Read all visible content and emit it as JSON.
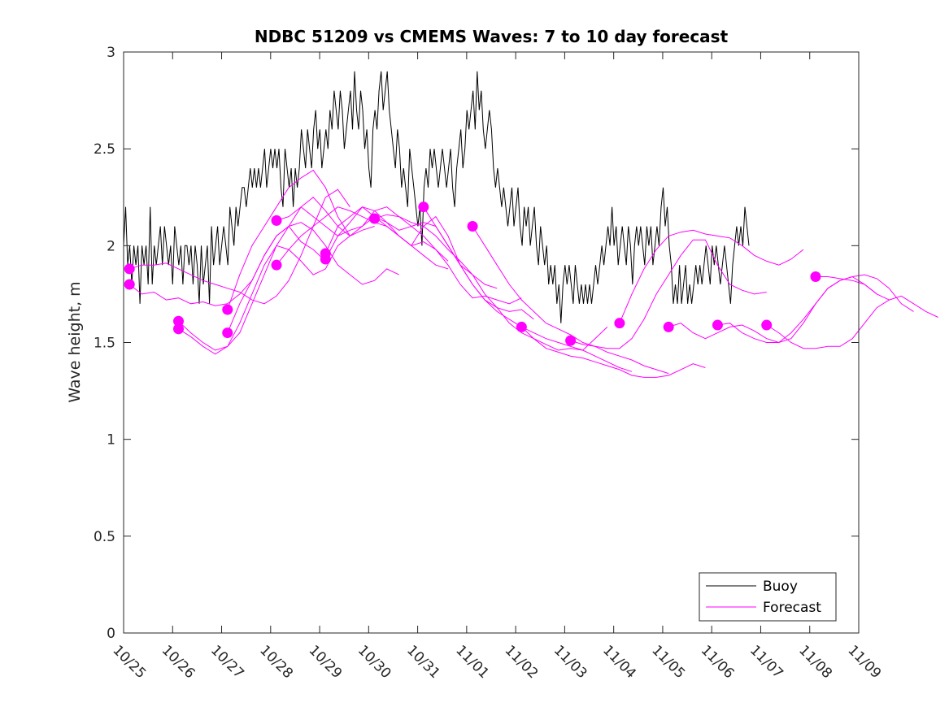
{
  "chart_data": {
    "type": "line",
    "title": "NDBC 51209 vs CMEMS Waves: 7 to 10 day forecast",
    "xlabel": "",
    "ylabel": "Wave height, m",
    "xlim_days": [
      0,
      15
    ],
    "x_tick_labels": [
      "10/25",
      "10/26",
      "10/27",
      "10/28",
      "10/29",
      "10/30",
      "10/31",
      "11/01",
      "11/02",
      "11/03",
      "11/04",
      "11/05",
      "11/06",
      "11/07",
      "11/08",
      "11/09"
    ],
    "ylim": [
      0,
      3
    ],
    "y_ticks": [
      0,
      0.5,
      1,
      1.5,
      2,
      2.5,
      3
    ],
    "y_tick_labels": [
      "0",
      "0.5",
      "1",
      "1.5",
      "2",
      "2.5",
      "3"
    ],
    "grid": false,
    "legend": {
      "placement": "bottom-right",
      "entries": [
        {
          "label": "Buoy",
          "color": "#000000"
        },
        {
          "label": "Forecast",
          "color": "#ff00ff"
        }
      ]
    },
    "colors": {
      "buoy": "#000000",
      "forecast": "#ff00ff"
    },
    "buoy_series": {
      "name": "Buoy",
      "x_start_day": 0,
      "x_step_day": 0.0417,
      "values": [
        2.0,
        2.2,
        1.9,
        2.0,
        1.8,
        2.0,
        1.9,
        2.0,
        1.7,
        2.0,
        1.9,
        2.0,
        1.8,
        2.2,
        1.8,
        2.0,
        1.9,
        2.0,
        2.1,
        1.9,
        2.1,
        2.0,
        1.9,
        2.0,
        1.8,
        2.1,
        2.0,
        1.9,
        2.0,
        1.8,
        2.0,
        2.0,
        1.9,
        2.0,
        1.8,
        2.0,
        1.9,
        1.7,
        2.0,
        1.8,
        1.9,
        2.0,
        1.7,
        2.1,
        1.9,
        2.0,
        2.1,
        1.9,
        2.0,
        2.1,
        2.0,
        1.9,
        2.2,
        2.1,
        2.0,
        2.2,
        2.1,
        2.2,
        2.3,
        2.3,
        2.2,
        2.3,
        2.4,
        2.3,
        2.4,
        2.3,
        2.4,
        2.3,
        2.4,
        2.5,
        2.3,
        2.4,
        2.5,
        2.4,
        2.5,
        2.4,
        2.5,
        2.3,
        2.2,
        2.5,
        2.4,
        2.3,
        2.4,
        2.2,
        2.4,
        2.3,
        2.4,
        2.6,
        2.5,
        2.4,
        2.6,
        2.5,
        2.4,
        2.6,
        2.7,
        2.5,
        2.6,
        2.4,
        2.5,
        2.6,
        2.5,
        2.7,
        2.6,
        2.8,
        2.7,
        2.6,
        2.8,
        2.7,
        2.5,
        2.6,
        2.7,
        2.8,
        2.6,
        2.9,
        2.7,
        2.6,
        2.8,
        2.7,
        2.5,
        2.6,
        2.4,
        2.3,
        2.6,
        2.7,
        2.6,
        2.8,
        2.9,
        2.7,
        2.8,
        2.9,
        2.7,
        2.6,
        2.5,
        2.4,
        2.6,
        2.5,
        2.3,
        2.4,
        2.3,
        2.2,
        2.5,
        2.4,
        2.3,
        2.2,
        2.1,
        2.2,
        2.0,
        2.3,
        2.4,
        2.3,
        2.5,
        2.4,
        2.5,
        2.4,
        2.3,
        2.4,
        2.5,
        2.4,
        2.3,
        2.4,
        2.5,
        2.3,
        2.2,
        2.4,
        2.5,
        2.6,
        2.4,
        2.5,
        2.7,
        2.6,
        2.7,
        2.8,
        2.6,
        2.9,
        2.7,
        2.8,
        2.6,
        2.5,
        2.6,
        2.7,
        2.6,
        2.4,
        2.3,
        2.4,
        2.3,
        2.2,
        2.3,
        2.2,
        2.1,
        2.2,
        2.3,
        2.1,
        2.2,
        2.3,
        2.1,
        2.0,
        2.2,
        2.1,
        2.2,
        2.0,
        2.1,
        2.2,
        2.0,
        1.9,
        2.1,
        2.0,
        1.9,
        2.0,
        1.8,
        1.9,
        1.8,
        1.9,
        1.7,
        1.8,
        1.6,
        1.8,
        1.9,
        1.8,
        1.9,
        1.8,
        1.7,
        1.9,
        1.8,
        1.7,
        1.8,
        1.7,
        1.8,
        1.7,
        1.8,
        1.7,
        1.8,
        1.9,
        1.8,
        1.9,
        2.0,
        1.9,
        2.0,
        2.1,
        2.0,
        2.2,
        2.0,
        2.1,
        1.9,
        2.0,
        2.1,
        2.0,
        1.9,
        2.1,
        2.0,
        1.8,
        2.0,
        2.1,
        2.0,
        2.1,
        2.0,
        1.9,
        2.1,
        2.0,
        2.1,
        1.9,
        2.0,
        2.1,
        2.0,
        2.2,
        2.3,
        2.1,
        2.2,
        2.0,
        1.9,
        1.7,
        1.8,
        1.7,
        1.9,
        1.7,
        1.8,
        1.9,
        1.7,
        1.8,
        1.7,
        1.8,
        1.9,
        1.8,
        1.9,
        1.8,
        1.9,
        2.0,
        1.9,
        1.8,
        2.0,
        1.9,
        2.0,
        1.9,
        1.8,
        1.9,
        2.0,
        1.9,
        1.8,
        1.7,
        1.9,
        2.0,
        2.1,
        2.0,
        2.1,
        2.0,
        2.2,
        2.1,
        2.0
      ]
    },
    "forecast_start_points": [
      {
        "day": 0.12,
        "value": 1.88
      },
      {
        "day": 0.12,
        "value": 1.8
      },
      {
        "day": 1.12,
        "value": 1.61
      },
      {
        "day": 1.12,
        "value": 1.57
      },
      {
        "day": 2.12,
        "value": 1.67
      },
      {
        "day": 2.12,
        "value": 1.55
      },
      {
        "day": 3.12,
        "value": 2.13
      },
      {
        "day": 3.12,
        "value": 1.9
      },
      {
        "day": 4.12,
        "value": 1.96
      },
      {
        "day": 4.12,
        "value": 1.93
      },
      {
        "day": 5.12,
        "value": 2.14
      },
      {
        "day": 6.12,
        "value": 2.2
      },
      {
        "day": 7.12,
        "value": 2.1
      },
      {
        "day": 8.12,
        "value": 1.58
      },
      {
        "day": 9.12,
        "value": 1.51
      },
      {
        "day": 10.12,
        "value": 1.6
      },
      {
        "day": 11.12,
        "value": 1.58
      },
      {
        "day": 12.12,
        "value": 1.59
      },
      {
        "day": 13.12,
        "value": 1.59
      },
      {
        "day": 14.12,
        "value": 1.84
      }
    ],
    "forecast_series": [
      {
        "name": "Forecast",
        "start_day": 0.12,
        "values": [
          1.88,
          1.9,
          1.9,
          1.91,
          1.88,
          1.85,
          1.82,
          1.8,
          1.78,
          1.76,
          1.72,
          1.7,
          1.74,
          1.82,
          1.95,
          2.1,
          2.25,
          2.29,
          2.2
        ]
      },
      {
        "name": "Forecast",
        "start_day": 0.12,
        "values": [
          1.8,
          1.75,
          1.76,
          1.72,
          1.73,
          1.7,
          1.71,
          1.69,
          1.7,
          1.75,
          1.82,
          1.95,
          2.05,
          2.1,
          2.02,
          1.98,
          1.92
        ]
      },
      {
        "name": "Forecast",
        "start_day": 1.12,
        "values": [
          1.61,
          1.55,
          1.5,
          1.46,
          1.48,
          1.55,
          1.7,
          1.85,
          2.0,
          2.1,
          2.2,
          2.25,
          2.18,
          2.1,
          2.05,
          2.08,
          2.1
        ]
      },
      {
        "name": "Forecast",
        "start_day": 1.12,
        "values": [
          1.57,
          1.53,
          1.48,
          1.44,
          1.48,
          1.6,
          1.75,
          1.9,
          2.0,
          1.98,
          1.92,
          1.85,
          1.88,
          2.0,
          2.05
        ]
      },
      {
        "name": "Forecast",
        "start_day": 2.12,
        "values": [
          1.67,
          1.85,
          2.0,
          2.1,
          2.2,
          2.3,
          2.35,
          2.39,
          2.3,
          2.15,
          2.05,
          2.1,
          2.15,
          2.12,
          2.08,
          2.1,
          2.05,
          1.98,
          1.92
        ]
      },
      {
        "name": "Forecast",
        "start_day": 2.12,
        "values": [
          1.55,
          1.7,
          1.82,
          1.95,
          2.05,
          2.1,
          2.12,
          2.08,
          2.0,
          1.9,
          1.85,
          1.8,
          1.82,
          1.88,
          1.85
        ]
      },
      {
        "name": "Forecast",
        "start_day": 3.12,
        "values": [
          2.13,
          2.15,
          2.2,
          2.15,
          2.1,
          2.05,
          2.08,
          2.1,
          2.18,
          2.2,
          2.15,
          2.1,
          2.12,
          2.1,
          2.0,
          1.9,
          1.85,
          1.8,
          1.78
        ]
      },
      {
        "name": "Forecast",
        "start_day": 3.12,
        "values": [
          1.9,
          1.98,
          2.05,
          2.1,
          2.15,
          2.2,
          2.18,
          2.15,
          2.12,
          2.1,
          2.05,
          2.0,
          1.95,
          1.9,
          1.88
        ]
      },
      {
        "name": "Forecast",
        "start_day": 4.12,
        "values": [
          1.96,
          2.1,
          2.15,
          2.2,
          2.18,
          2.12,
          2.05,
          2.0,
          2.02,
          1.98,
          1.9,
          1.8,
          1.73,
          1.74,
          1.72,
          1.7,
          1.73
        ]
      },
      {
        "name": "Forecast",
        "start_day": 4.12,
        "values": [
          1.93,
          2.05,
          2.12,
          2.2,
          2.15,
          2.1,
          2.05,
          2.0,
          2.1,
          2.15,
          2.05,
          1.9,
          1.8,
          1.72,
          1.68,
          1.66,
          1.67,
          1.62
        ]
      },
      {
        "name": "Forecast",
        "start_day": 5.12,
        "values": [
          2.14,
          2.16,
          2.15,
          2.12,
          2.1,
          2.05,
          1.98,
          1.92,
          1.85,
          1.75,
          1.68,
          1.6,
          1.55,
          1.52,
          1.49,
          1.46,
          1.47,
          1.46,
          1.52,
          1.58
        ]
      },
      {
        "name": "Forecast",
        "start_day": 6.12,
        "values": [
          2.2,
          2.1,
          2.0,
          1.9,
          1.8,
          1.72,
          1.66,
          1.62,
          1.58,
          1.55,
          1.52,
          1.5,
          1.48,
          1.46,
          1.43,
          1.4,
          1.37,
          1.35
        ]
      },
      {
        "name": "Forecast",
        "start_day": 7.12,
        "values": [
          2.1,
          2.0,
          1.9,
          1.8,
          1.72,
          1.66,
          1.6,
          1.57,
          1.54,
          1.5,
          1.48,
          1.45,
          1.43,
          1.41,
          1.38,
          1.36,
          1.34
        ]
      },
      {
        "name": "Forecast",
        "start_day": 8.12,
        "values": [
          1.58,
          1.52,
          1.47,
          1.45,
          1.43,
          1.42,
          1.4,
          1.38,
          1.36,
          1.33,
          1.32,
          1.32,
          1.33,
          1.36,
          1.39,
          1.37
        ]
      },
      {
        "name": "Forecast",
        "start_day": 9.12,
        "values": [
          1.51,
          1.49,
          1.48,
          1.47,
          1.47,
          1.52,
          1.62,
          1.75,
          1.85,
          1.95,
          2.03,
          2.03,
          1.9,
          1.8,
          1.77,
          1.75,
          1.76
        ]
      },
      {
        "name": "Forecast",
        "start_day": 10.12,
        "values": [
          1.6,
          1.75,
          1.88,
          1.98,
          2.05,
          2.07,
          2.08,
          2.06,
          2.05,
          2.04,
          2.0,
          1.95,
          1.92,
          1.9,
          1.93,
          1.98
        ]
      },
      {
        "name": "Forecast",
        "start_day": 11.12,
        "values": [
          1.58,
          1.6,
          1.55,
          1.52,
          1.55,
          1.58,
          1.59,
          1.56,
          1.52,
          1.5,
          1.52,
          1.6,
          1.7,
          1.78,
          1.82,
          1.84,
          1.8,
          1.75
        ]
      },
      {
        "name": "Forecast",
        "start_day": 12.12,
        "values": [
          1.59,
          1.6,
          1.55,
          1.52,
          1.5,
          1.5,
          1.55,
          1.62,
          1.7,
          1.78,
          1.82,
          1.84,
          1.85,
          1.83,
          1.78,
          1.7,
          1.66
        ]
      },
      {
        "name": "Forecast",
        "start_day": 13.12,
        "values": [
          1.59,
          1.55,
          1.5,
          1.47,
          1.47,
          1.48,
          1.48,
          1.52,
          1.6,
          1.68,
          1.72,
          1.74,
          1.7,
          1.66,
          1.63
        ]
      },
      {
        "name": "Forecast",
        "start_day": 14.12,
        "values": [
          1.84,
          1.84,
          1.83,
          1.82,
          1.8,
          1.75,
          1.72
        ]
      }
    ]
  }
}
